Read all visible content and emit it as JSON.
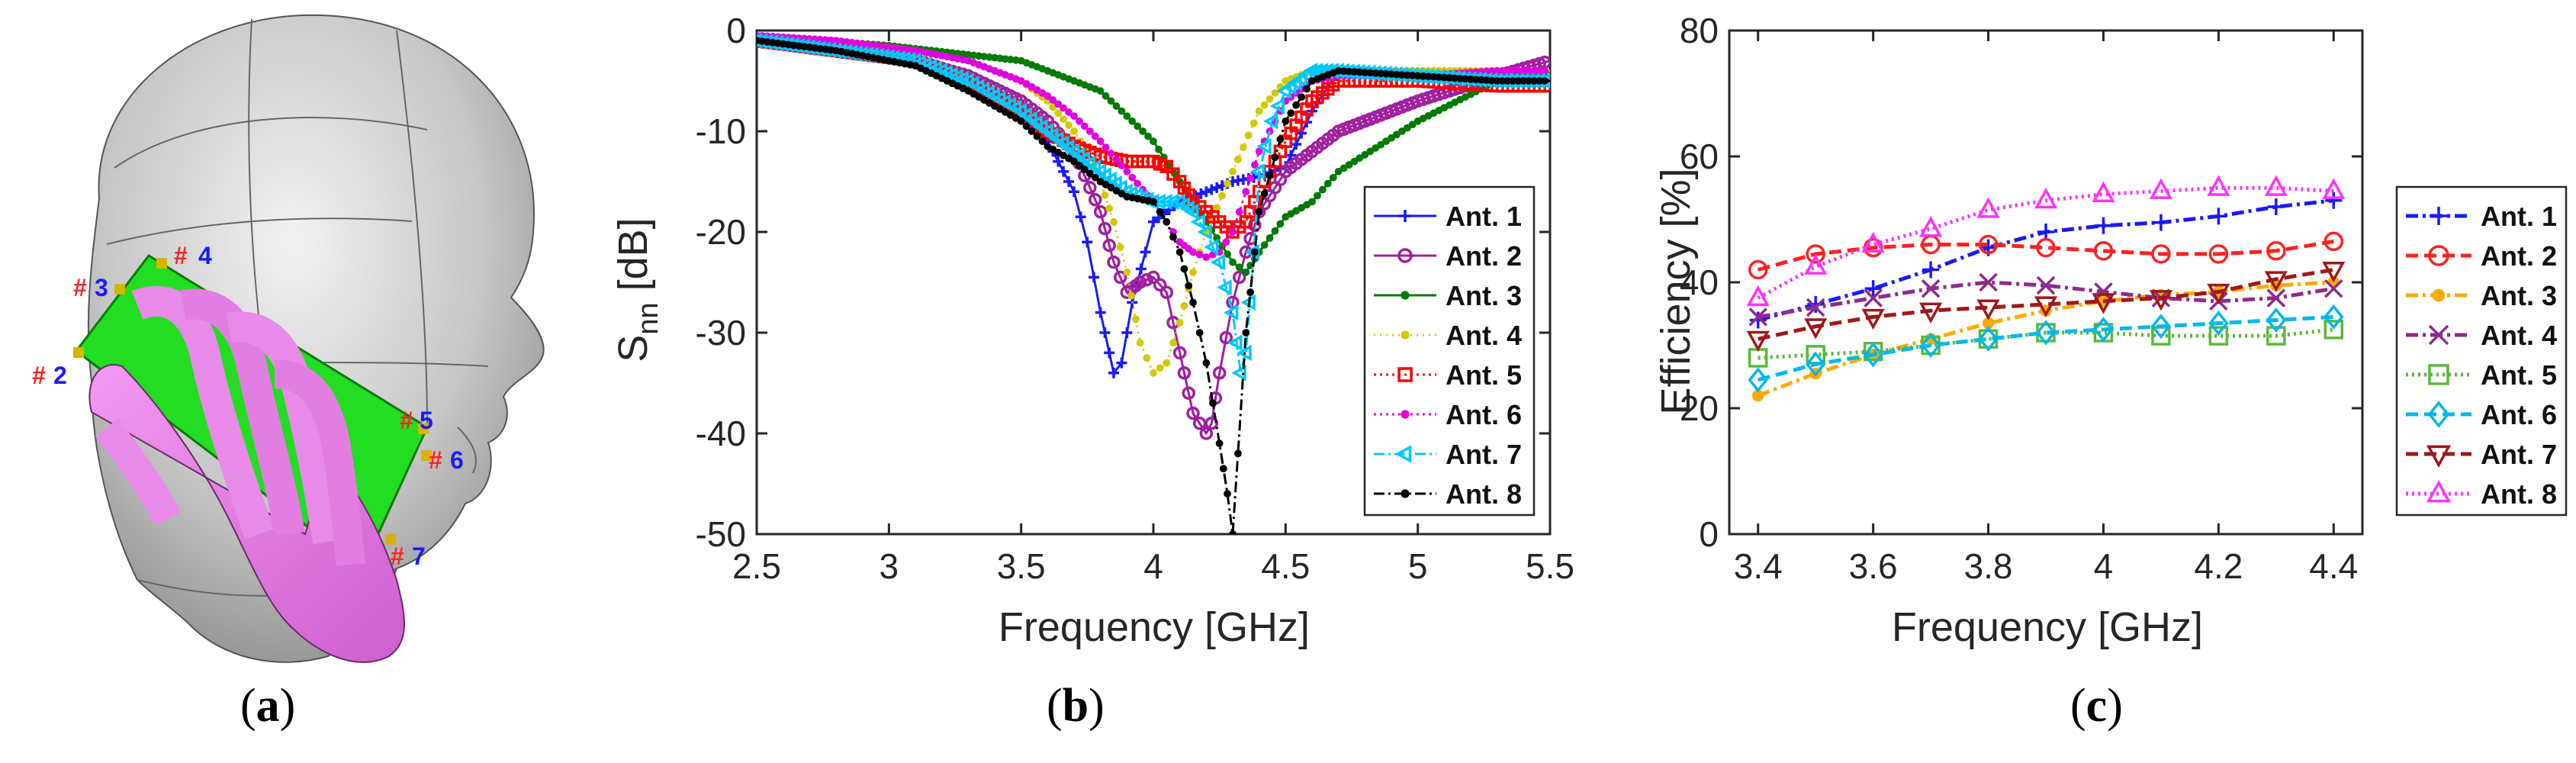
{
  "panel_a": {
    "caption_letter": "a",
    "ports": [
      {
        "hash": "#",
        "num": "2"
      },
      {
        "hash": "#",
        "num": "3"
      },
      {
        "hash": "#",
        "num": "4"
      },
      {
        "hash": "#",
        "num": "5"
      },
      {
        "hash": "#",
        "num": "6"
      },
      {
        "hash": "#",
        "num": "7"
      }
    ],
    "colors": {
      "head": "#c8c8c8",
      "board": "#22dd22",
      "hand": "#e377e3",
      "hash": "#ff2222",
      "num": "#1a1aff"
    }
  },
  "panel_b": {
    "caption_letter": "b"
  },
  "panel_c": {
    "caption_letter": "c"
  },
  "chart_data": [
    {
      "type": "line",
      "xlabel": "Frequency [GHz]",
      "ylabel_main": "S",
      "ylabel_sub": "nn",
      "ylabel_unit": " [dB]",
      "xlim": [
        2.5,
        5.5
      ],
      "ylim": [
        -50,
        0
      ],
      "xticks": [
        2.5,
        3,
        3.5,
        4,
        4.5,
        5,
        5.5
      ],
      "xtick_labels": [
        "2.5",
        "3",
        "3.5",
        "4",
        "4.5",
        "5",
        "5.5"
      ],
      "yticks": [
        -50,
        -40,
        -30,
        -20,
        -10,
        0
      ],
      "ytick_labels": [
        "-50",
        "-40",
        "-30",
        "-20",
        "-10",
        "0"
      ],
      "legend_position": "bottom-right",
      "series": [
        {
          "name": "Ant. 1",
          "color": "#1a1aff",
          "marker": "plus",
          "dash": "",
          "x": [
            2.5,
            2.8,
            3.1,
            3.3,
            3.5,
            3.6,
            3.7,
            3.75,
            3.8,
            3.85,
            3.88,
            3.92,
            3.97,
            4.0,
            4.1,
            4.2,
            4.3,
            4.4,
            4.5,
            4.6,
            4.7,
            5.0,
            5.3,
            5.5
          ],
          "y": [
            -1,
            -2,
            -3,
            -5,
            -8,
            -11,
            -16,
            -21,
            -28,
            -34,
            -33,
            -27,
            -22,
            -19,
            -17,
            -16,
            -15,
            -14.5,
            -13.5,
            -8,
            -4,
            -4.5,
            -4.5,
            -4.5
          ]
        },
        {
          "name": "Ant. 2",
          "color": "#a020a0",
          "marker": "circle",
          "dash": "",
          "x": [
            2.5,
            2.8,
            3.1,
            3.3,
            3.5,
            3.6,
            3.7,
            3.8,
            3.85,
            3.9,
            3.95,
            4.0,
            4.05,
            4.1,
            4.15,
            4.2,
            4.22,
            4.25,
            4.3,
            4.35,
            4.4,
            4.5,
            4.7,
            5.0,
            5.3,
            5.5
          ],
          "y": [
            -1,
            -2,
            -3,
            -4.5,
            -7,
            -9,
            -12,
            -18,
            -23,
            -26,
            -25,
            -24.5,
            -26,
            -32,
            -38,
            -40,
            -39,
            -34,
            -27,
            -22,
            -18,
            -14,
            -10,
            -7,
            -4.5,
            -3
          ]
        },
        {
          "name": "Ant. 3",
          "color": "#007a00",
          "marker": "dot",
          "dash": "",
          "x": [
            2.5,
            3.0,
            3.5,
            3.8,
            4.0,
            4.1,
            4.2,
            4.3,
            4.35,
            4.4,
            4.5,
            4.6,
            4.7,
            5.0,
            5.3,
            5.5
          ],
          "y": [
            -0.5,
            -1.5,
            -3,
            -6,
            -11,
            -15,
            -19,
            -23,
            -24,
            -22,
            -18.5,
            -17,
            -14,
            -9,
            -5,
            -4
          ]
        },
        {
          "name": "Ant. 4",
          "color": "#d4c800",
          "marker": "dot",
          "dash": "2,6",
          "x": [
            2.5,
            2.8,
            3.1,
            3.3,
            3.5,
            3.6,
            3.7,
            3.75,
            3.8,
            3.85,
            3.9,
            3.95,
            4.0,
            4.05,
            4.1,
            4.15,
            4.2,
            4.3,
            4.4,
            4.5,
            4.6,
            4.7,
            5.0,
            5.3,
            5.5
          ],
          "y": [
            -0.5,
            -1,
            -2,
            -3,
            -5,
            -7,
            -10,
            -12,
            -15,
            -19,
            -24,
            -31,
            -34,
            -33,
            -29,
            -24,
            -20,
            -14,
            -8,
            -5,
            -4,
            -4,
            -4,
            -4,
            -4
          ]
        },
        {
          "name": "Ant. 5",
          "color": "#ff0000",
          "marker": "square",
          "dash": "3,5",
          "x": [
            2.5,
            2.8,
            3.1,
            3.3,
            3.5,
            3.6,
            3.7,
            3.8,
            3.9,
            4.0,
            4.05,
            4.1,
            4.15,
            4.2,
            4.25,
            4.3,
            4.35,
            4.4,
            4.5,
            4.6,
            4.7,
            5.0,
            5.3,
            5.5
          ],
          "y": [
            -1,
            -2,
            -3,
            -5,
            -8,
            -10,
            -11.5,
            -12.5,
            -13,
            -13,
            -13.5,
            -15,
            -17,
            -18,
            -19,
            -20,
            -19,
            -16,
            -11,
            -7,
            -5,
            -5,
            -5.5,
            -5.5
          ]
        },
        {
          "name": "Ant. 6",
          "color": "#e000e0",
          "marker": "dot",
          "dash": "3,5",
          "x": [
            2.5,
            2.8,
            3.1,
            3.3,
            3.5,
            3.6,
            3.7,
            3.8,
            3.9,
            4.0,
            4.05,
            4.1,
            4.15,
            4.2,
            4.25,
            4.3,
            4.35,
            4.4,
            4.5,
            4.6,
            4.7,
            5.0,
            5.3,
            5.5
          ],
          "y": [
            -0.5,
            -1,
            -2,
            -3,
            -5,
            -6.5,
            -8.5,
            -11,
            -14,
            -17,
            -19,
            -21,
            -22,
            -22.5,
            -22,
            -20,
            -16,
            -12,
            -7,
            -5,
            -4.5,
            -4.5,
            -4,
            -4
          ]
        },
        {
          "name": "Ant. 7",
          "color": "#00c8ff",
          "marker": "tri-left",
          "dash": "14,5,3,5",
          "x": [
            2.5,
            2.8,
            3.1,
            3.3,
            3.5,
            3.6,
            3.7,
            3.8,
            3.9,
            4.0,
            4.05,
            4.1,
            4.15,
            4.2,
            4.25,
            4.3,
            4.33,
            4.35,
            4.38,
            4.4,
            4.45,
            4.5,
            4.6,
            4.7,
            5.0,
            5.3,
            5.5
          ],
          "y": [
            -1,
            -2,
            -3,
            -5,
            -8,
            -10,
            -12,
            -14,
            -16,
            -17,
            -17,
            -17,
            -18,
            -20,
            -23,
            -28,
            -34,
            -32,
            -22,
            -14,
            -9,
            -6,
            -4,
            -4,
            -4.5,
            -5,
            -5
          ]
        },
        {
          "name": "Ant. 8",
          "color": "#000000",
          "marker": "dot",
          "dash": "14,5,3,5",
          "x": [
            2.5,
            2.8,
            3.1,
            3.3,
            3.5,
            3.6,
            3.7,
            3.8,
            3.9,
            4.0,
            4.05,
            4.1,
            4.15,
            4.2,
            4.25,
            4.28,
            4.3,
            4.32,
            4.35,
            4.4,
            4.5,
            4.6,
            4.7,
            5.0,
            5.3,
            5.5
          ],
          "y": [
            -1,
            -2,
            -3.5,
            -6,
            -9,
            -11.5,
            -13,
            -15,
            -16.5,
            -17,
            -19,
            -22,
            -27,
            -33,
            -41,
            -46,
            -50,
            -42,
            -30,
            -18,
            -9,
            -5,
            -4,
            -4.5,
            -5,
            -5
          ]
        }
      ]
    },
    {
      "type": "line",
      "xlabel": "Frequency [GHz]",
      "ylabel": "Efficiency [%]",
      "xlim": [
        3.35,
        4.45
      ],
      "ylim": [
        0,
        80
      ],
      "xticks": [
        3.4,
        3.6,
        3.8,
        4.0,
        4.2,
        4.4
      ],
      "xtick_labels": [
        "3.4",
        "3.6",
        "3.8",
        "4",
        "4.2",
        "4.4"
      ],
      "yticks": [
        0,
        20,
        40,
        60,
        80
      ],
      "ytick_labels": [
        "0",
        "20",
        "40",
        "60",
        "80"
      ],
      "legend_position": "right",
      "x": [
        3.4,
        3.5,
        3.6,
        3.7,
        3.8,
        3.9,
        4.0,
        4.1,
        4.2,
        4.3,
        4.4
      ],
      "series": [
        {
          "name": "Ant. 1",
          "color": "#1a1aff",
          "marker": "plus",
          "dash": "16,6,4,6",
          "values": [
            34,
            36.5,
            39,
            42,
            45.5,
            48,
            49,
            49.5,
            50.5,
            52,
            53
          ]
        },
        {
          "name": "Ant. 2",
          "color": "#ff2222",
          "marker": "circle",
          "dash": "16,8",
          "values": [
            42,
            44.5,
            45.5,
            46,
            46,
            45.5,
            45,
            44.5,
            44.5,
            45,
            46.5
          ]
        },
        {
          "name": "Ant. 3",
          "color": "#ffaa00",
          "marker": "dot",
          "dash": "16,6,4,6",
          "values": [
            22,
            25.5,
            28.5,
            31,
            33.5,
            35.5,
            37,
            38,
            38.5,
            39.5,
            40
          ]
        },
        {
          "name": "Ant. 4",
          "color": "#8e2b8e",
          "marker": "x",
          "dash": "16,6,4,6",
          "values": [
            34.5,
            36,
            37.5,
            39,
            40,
            39.5,
            38.5,
            37.5,
            37,
            37.5,
            39
          ]
        },
        {
          "name": "Ant. 5",
          "color": "#5cb83a",
          "marker": "square",
          "dash": "3,5",
          "values": [
            28,
            28.5,
            29,
            30,
            31,
            32,
            32,
            31.5,
            31.5,
            31.5,
            32.5
          ]
        },
        {
          "name": "Ant. 6",
          "color": "#00b8e8",
          "marker": "diamond",
          "dash": "16,8",
          "values": [
            24.5,
            27,
            28.5,
            30,
            31,
            32,
            32.5,
            33,
            33.5,
            34,
            34.5
          ]
        },
        {
          "name": "Ant. 7",
          "color": "#a01818",
          "marker": "tri-down",
          "dash": "16,8",
          "values": [
            31,
            33,
            34.5,
            35.5,
            36,
            36.5,
            37,
            37.5,
            38.5,
            40.5,
            42
          ]
        },
        {
          "name": "Ant. 8",
          "color": "#ff33ff",
          "marker": "tri-up",
          "dash": "3,5",
          "values": [
            37.5,
            42.5,
            46,
            48.5,
            51.5,
            53,
            54,
            54.5,
            55,
            55,
            54.5
          ]
        }
      ]
    }
  ]
}
